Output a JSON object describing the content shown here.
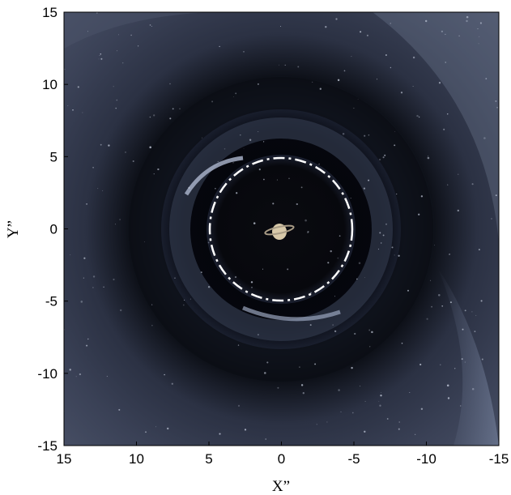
{
  "chart_data": {
    "type": "image",
    "xlabel": "X”",
    "ylabel": "Y”",
    "xlim": [
      15,
      -15
    ],
    "ylim": [
      -15,
      15
    ],
    "x_ticks": [
      15,
      10,
      5,
      0,
      -5,
      -10,
      -15
    ],
    "y_ticks": [
      15,
      10,
      5,
      0,
      -5,
      -10,
      -15
    ],
    "x_tick_labels": [
      "15",
      "10",
      "5",
      "0",
      "-5",
      "-10",
      "-15"
    ],
    "y_tick_labels": [
      "15",
      "10",
      "5",
      "0",
      "-5",
      "-10",
      "-15"
    ],
    "dashed_circle": {
      "center": [
        0,
        0
      ],
      "radius": 5,
      "color": "#ffffff"
    },
    "grid": false
  }
}
